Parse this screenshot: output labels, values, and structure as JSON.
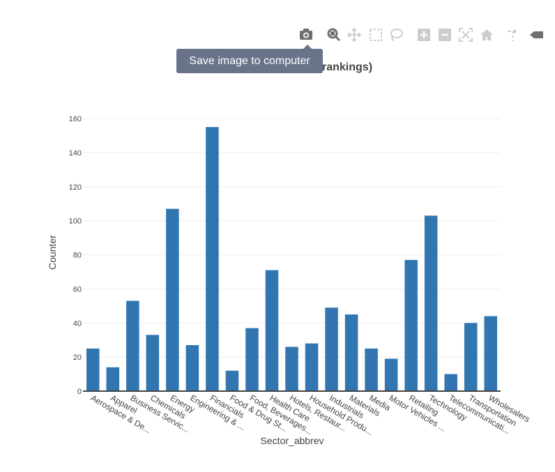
{
  "chart_data": {
    "type": "bar",
    "title": "rankings)",
    "xlabel": "Sector_abbrev",
    "ylabel": "Counter",
    "ylim": [
      0,
      160
    ],
    "yticks": [
      0,
      20,
      40,
      60,
      80,
      100,
      120,
      140,
      160
    ],
    "grid": true,
    "bar_color": "#3276b1",
    "categories": [
      "Aerospace &  De...",
      "Apparel",
      "Business Servic...",
      "Chemicals",
      "Energy",
      "Engineering & ...",
      "Financials",
      "Food &  Drug St...",
      "Food, Beverages...",
      "Health Care",
      "Hotels, Restaur...",
      "Household Produ...",
      "Industrials",
      "Materials",
      "Media",
      "Motor Vehicles ...",
      "Retailing",
      "Technology",
      "Telecommunicati...",
      "Transportation",
      "Wholesalers"
    ],
    "values": [
      25,
      14,
      53,
      33,
      107,
      27,
      155,
      12,
      37,
      71,
      26,
      28,
      49,
      45,
      25,
      19,
      77,
      103,
      10,
      40,
      44
    ]
  },
  "modebar": {
    "icons": [
      "camera-icon",
      "zoom-icon",
      "pan-icon",
      "box-select-icon",
      "lasso-select-icon",
      "zoom-in-icon",
      "zoom-out-icon",
      "autoscale-icon",
      "reset-axes-icon",
      "spike-lines-icon",
      "hover-closest-icon"
    ]
  },
  "tooltip": {
    "text": "Save image to computer"
  }
}
